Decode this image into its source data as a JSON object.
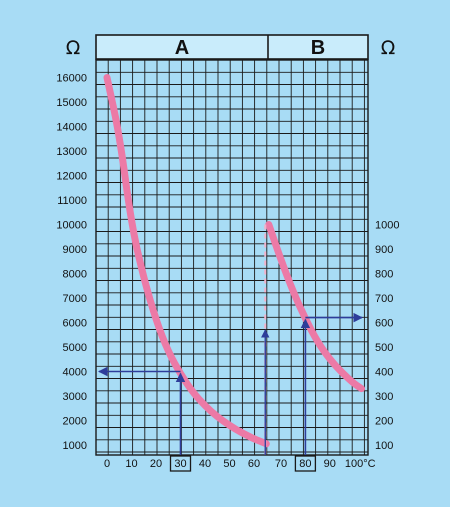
{
  "colors": {
    "background": "#a8dcf5",
    "grid": "#1a1a1a",
    "curve": "#ec7aa6",
    "arrow": "#2e3d9a"
  },
  "chart_data": {
    "type": "line",
    "unit_symbol": "Ω",
    "sections": [
      {
        "label": "A",
        "x_ticks": [
          "0",
          "10",
          "20",
          "30",
          "40",
          "50",
          "60"
        ],
        "highlight_tick": "30",
        "xlim": [
          0,
          60
        ],
        "y_ticks": [
          "16000",
          "15000",
          "14000",
          "13000",
          "12000",
          "11000",
          "10000",
          "9000",
          "8000",
          "7000",
          "6000",
          "5000",
          "4000",
          "3000",
          "2000",
          "1000"
        ],
        "ylim": [
          1000,
          16000
        ],
        "series": [
          {
            "x": [
              0,
              5,
              10,
              15,
              20,
              25,
              30,
              35,
              40,
              45,
              50,
              55,
              60,
              65
            ],
            "y": [
              16000,
              13700,
              10000,
              7800,
              6100,
              4800,
              3900,
              3150,
              2600,
              2150,
              1800,
              1500,
              1250,
              1050
            ]
          }
        ],
        "annotation": {
          "x": 30,
          "y": 4000
        }
      },
      {
        "label": "B",
        "x_ticks": [
          "70",
          "80",
          "90",
          "100°C"
        ],
        "highlight_tick": "80",
        "xlim": [
          70,
          100
        ],
        "y_ticks": [
          "1000",
          "900",
          "800",
          "700",
          "600",
          "500",
          "400",
          "300",
          "200",
          "100"
        ],
        "ylim": [
          100,
          1000
        ],
        "series": [
          {
            "x": [
              65,
              70,
              75,
              80,
              85,
              90,
              95,
              100,
              103
            ],
            "y": [
              1000,
              855,
              725,
              615,
              520,
              450,
              395,
              350,
              330
            ]
          }
        ],
        "annotation": {
          "x": 80,
          "y": 620
        }
      }
    ],
    "grid": true
  }
}
